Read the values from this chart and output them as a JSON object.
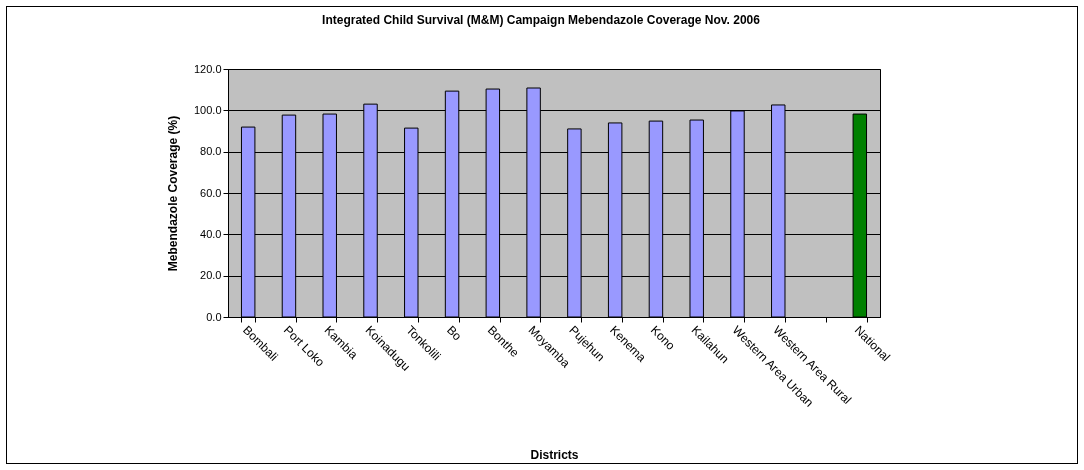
{
  "chart_data": {
    "type": "bar",
    "title": "Integrated Child Survival (M&M) Campaign Mebendazole Coverage Nov. 2006",
    "xlabel": "Districts",
    "ylabel": "Mebendazole Coverage (%)",
    "categories": [
      "Bombali",
      "Port Loko",
      "Kambia",
      "Koinadugu",
      "Tonkolili",
      "Bo",
      "Bonthe",
      "Moyamba",
      "Pujehun",
      "Kenema",
      "Kono",
      "Kailahun",
      "Western Area Urban",
      "Western Area Rural",
      null,
      "National"
    ],
    "values": [
      91.9,
      97.7,
      98.2,
      103.0,
      91.4,
      109.3,
      110.3,
      110.8,
      91.0,
      93.9,
      94.8,
      95.3,
      99.7,
      102.6,
      null,
      98.2
    ],
    "colors": [
      "#9999ff",
      "#9999ff",
      "#9999ff",
      "#9999ff",
      "#9999ff",
      "#9999ff",
      "#9999ff",
      "#9999ff",
      "#9999ff",
      "#9999ff",
      "#9999ff",
      "#9999ff",
      "#9999ff",
      "#9999ff",
      "#9999ff",
      "#008000"
    ],
    "ylim": [
      0,
      120
    ],
    "yticks": [
      {
        "value": 0,
        "label": "0.0"
      },
      {
        "value": 20,
        "label": "20.0"
      },
      {
        "value": 40,
        "label": "40.0"
      },
      {
        "value": 60,
        "label": "60.0"
      },
      {
        "value": 80,
        "label": "80.0"
      },
      {
        "value": 100,
        "label": "100.0"
      },
      {
        "value": 120,
        "label": "120.0"
      }
    ],
    "grid": "y"
  }
}
